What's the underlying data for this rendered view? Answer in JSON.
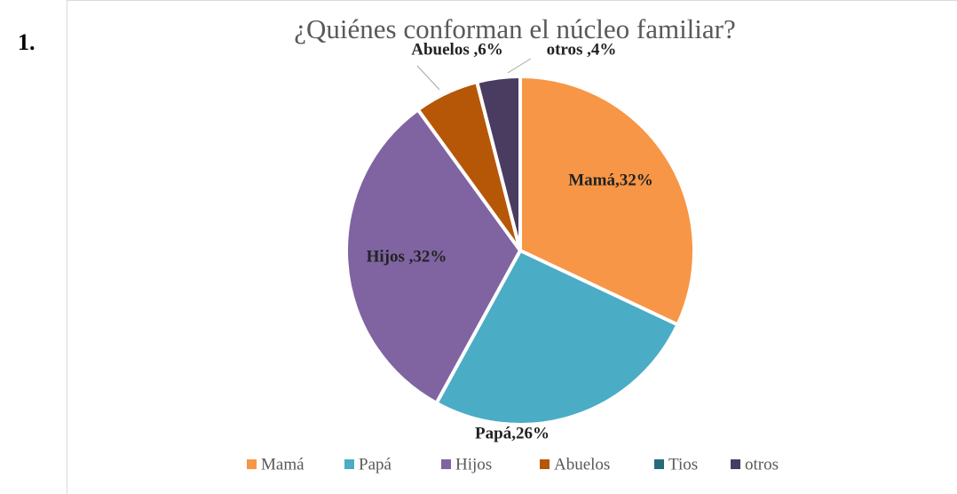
{
  "list_marker": "1.",
  "chart_data": {
    "type": "pie",
    "title": "¿Quiénes conforman el núcleo familiar?",
    "categories": [
      "Mamá",
      "Papá",
      "Hijos",
      "Abuelos",
      "Tios",
      "otros"
    ],
    "values": [
      32,
      26,
      32,
      6,
      0,
      4
    ],
    "value_labels": [
      "Mamá,32%",
      "Papá,26%",
      "Hijos ,32%",
      "Abuelos ,6%",
      null,
      "otros ,4%"
    ],
    "colors": [
      "#F79646",
      "#4BACC6",
      "#8064A2",
      "#B65708",
      "#276A7C",
      "#4A3B60"
    ],
    "legend": "bottom"
  }
}
